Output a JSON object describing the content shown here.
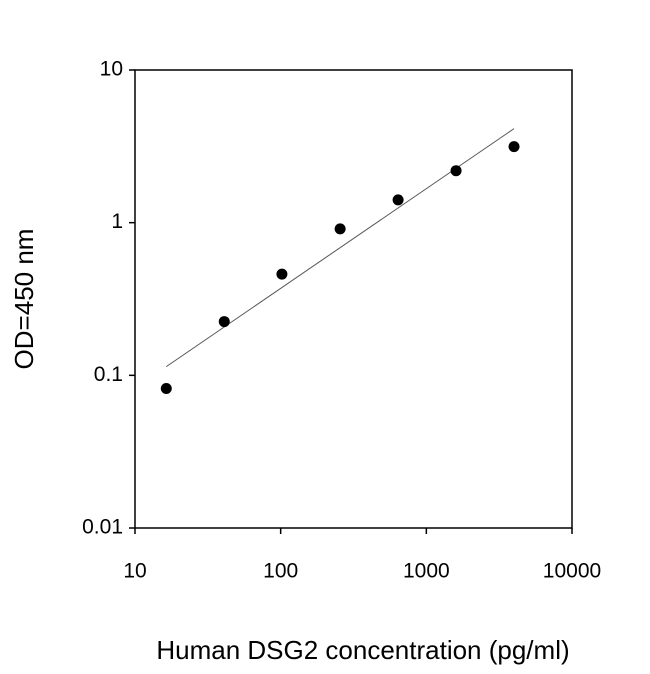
{
  "chart_data": {
    "type": "scatter",
    "x_label": "Human DSG2 concentration (pg/ml)",
    "y_label": "OD=450 nm",
    "x": [
      16.4,
      41,
      102,
      256,
      640,
      1600,
      4000
    ],
    "values": [
      0.082,
      0.225,
      0.46,
      0.91,
      1.41,
      2.19,
      3.15
    ],
    "color": "#000000",
    "trendline": {
      "x": [
        16.4,
        4000
      ],
      "values": [
        0.114,
        4.13
      ],
      "color": "#555555"
    },
    "xlim": [
      10,
      10000
    ],
    "xticks": [
      10,
      100,
      1000,
      10000
    ],
    "ylim": [
      0.01,
      10
    ],
    "yticks": [
      0.01,
      0.1,
      1,
      10
    ],
    "xscale": "log",
    "yscale": "log",
    "grid": false
  }
}
